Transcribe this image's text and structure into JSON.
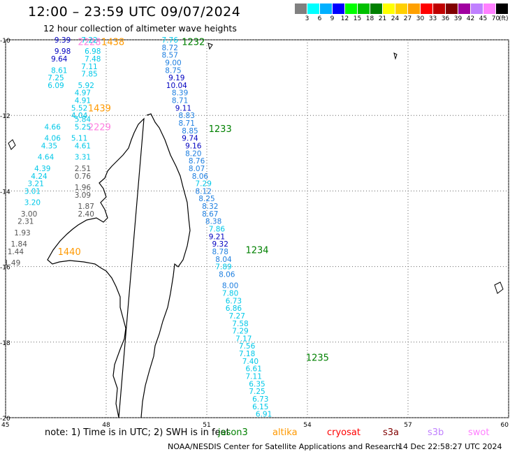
{
  "header": {
    "title": "12:00 – 23:59 UTC 09/07/2024",
    "subtitle": "12 hour collection of altimeter wave heights"
  },
  "colorbar": {
    "colors": [
      "#808080",
      "#00ffff",
      "#00b0ff",
      "#0000ff",
      "#00ff00",
      "#00c000",
      "#008000",
      "#ffff00",
      "#ffd000",
      "#ffa000",
      "#ff0000",
      "#c00000",
      "#800000",
      "#a000a0",
      "#c080ff",
      "#ff80ff",
      "#000000"
    ],
    "labels": [
      "3",
      "6",
      "9",
      "12",
      "15",
      "18",
      "21",
      "24",
      "27",
      "30",
      "33",
      "36",
      "39",
      "42",
      "45",
      "70"
    ],
    "unit": "(ft)"
  },
  "axes": {
    "lat_labels": [
      "-10",
      "-12",
      "-14",
      "-16",
      "-18",
      "-20"
    ],
    "lon_labels": [
      "45",
      "48",
      "51",
      "54",
      "57",
      "60"
    ]
  },
  "colors": {
    "gray": "#555555",
    "cyan": "#00c8e8",
    "blue": "#1e7fe0",
    "navy": "#0000c0",
    "green": "#008000",
    "orange": "#ff9900",
    "pink": "#ff7fe0"
  },
  "chart_data": {
    "type": "scatter",
    "xlabel": "",
    "ylabel": "",
    "xlim": [
      45,
      60
    ],
    "ylim": [
      -20,
      -10
    ],
    "track_times": [
      {
        "text": "1438",
        "lon": 48.2,
        "lat": -10.05,
        "color": "orange"
      },
      {
        "text": "2228",
        "lon": 47.5,
        "lat": -10.05,
        "color": "pink"
      },
      {
        "text": "1439",
        "lon": 47.8,
        "lat": -11.8,
        "color": "orange"
      },
      {
        "text": "2229",
        "lon": 47.8,
        "lat": -12.3,
        "color": "pink"
      },
      {
        "text": "1440",
        "lon": 46.9,
        "lat": -15.6,
        "color": "orange"
      },
      {
        "text": "1232",
        "lon": 50.6,
        "lat": -10.05,
        "color": "green"
      },
      {
        "text": "1233",
        "lon": 51.4,
        "lat": -12.35,
        "color": "green"
      },
      {
        "text": "1234",
        "lon": 52.5,
        "lat": -15.55,
        "color": "green"
      },
      {
        "text": "1235",
        "lon": 54.3,
        "lat": -18.4,
        "color": "green"
      }
    ],
    "series": [
      {
        "points": [
          {
            "lon": 46.7,
            "lat": -10.0,
            "v": "9.39",
            "c": "navy"
          },
          {
            "lon": 46.7,
            "lat": -10.3,
            "v": "9.98",
            "c": "navy"
          },
          {
            "lon": 46.6,
            "lat": -10.5,
            "v": "9.64",
            "c": "navy"
          },
          {
            "lon": 46.6,
            "lat": -10.8,
            "v": "8.61",
            "c": "cyan"
          },
          {
            "lon": 46.5,
            "lat": -11.0,
            "v": "7.25",
            "c": "cyan"
          },
          {
            "lon": 46.5,
            "lat": -11.2,
            "v": "6.09",
            "c": "cyan"
          },
          {
            "lon": 46.4,
            "lat": -12.3,
            "v": "4.66",
            "c": "cyan"
          },
          {
            "lon": 46.4,
            "lat": -12.6,
            "v": "4.06",
            "c": "cyan"
          },
          {
            "lon": 46.3,
            "lat": -12.8,
            "v": "4.35",
            "c": "cyan"
          },
          {
            "lon": 46.2,
            "lat": -13.1,
            "v": "4.64",
            "c": "cyan"
          },
          {
            "lon": 46.1,
            "lat": -13.4,
            "v": "4.39",
            "c": "cyan"
          },
          {
            "lon": 46.0,
            "lat": -13.6,
            "v": "4.24",
            "c": "cyan"
          },
          {
            "lon": 45.9,
            "lat": -13.8,
            "v": "3.21",
            "c": "cyan"
          },
          {
            "lon": 45.8,
            "lat": -14.0,
            "v": "3.01",
            "c": "cyan"
          },
          {
            "lon": 45.8,
            "lat": -14.3,
            "v": "3.20",
            "c": "cyan"
          },
          {
            "lon": 45.7,
            "lat": -14.6,
            "v": "3.00",
            "c": "gray"
          },
          {
            "lon": 45.6,
            "lat": -14.8,
            "v": "2.31",
            "c": "gray"
          },
          {
            "lon": 45.5,
            "lat": -15.1,
            "v": "1.93",
            "c": "gray"
          },
          {
            "lon": 45.4,
            "lat": -15.4,
            "v": "1.84",
            "c": "gray"
          },
          {
            "lon": 45.3,
            "lat": -15.6,
            "v": "1.44",
            "c": "gray"
          },
          {
            "lon": 45.2,
            "lat": -15.9,
            "v": "1.49",
            "c": "gray"
          }
        ]
      },
      {
        "points": [
          {
            "lon": 47.5,
            "lat": -10.0,
            "v": "7.22",
            "c": "cyan"
          },
          {
            "lon": 47.6,
            "lat": -10.3,
            "v": "6.98",
            "c": "cyan"
          },
          {
            "lon": 47.6,
            "lat": -10.5,
            "v": "7.48",
            "c": "cyan"
          },
          {
            "lon": 47.5,
            "lat": -10.7,
            "v": "7.11",
            "c": "cyan"
          },
          {
            "lon": 47.5,
            "lat": -10.9,
            "v": "7.85",
            "c": "cyan"
          },
          {
            "lon": 47.4,
            "lat": -11.2,
            "v": "5.92",
            "c": "cyan"
          },
          {
            "lon": 47.3,
            "lat": -11.4,
            "v": "4.97",
            "c": "cyan"
          },
          {
            "lon": 47.3,
            "lat": -11.6,
            "v": "4.91",
            "c": "cyan"
          },
          {
            "lon": 47.2,
            "lat": -11.8,
            "v": "5.52",
            "c": "cyan"
          },
          {
            "lon": 47.2,
            "lat": -12.0,
            "v": "4.04",
            "c": "cyan"
          },
          {
            "lon": 47.3,
            "lat": -12.1,
            "v": "5.84",
            "c": "cyan"
          },
          {
            "lon": 47.3,
            "lat": -12.3,
            "v": "5.25",
            "c": "cyan"
          },
          {
            "lon": 47.2,
            "lat": -12.6,
            "v": "5.11",
            "c": "cyan"
          },
          {
            "lon": 47.3,
            "lat": -12.8,
            "v": "4.61",
            "c": "cyan"
          },
          {
            "lon": 47.3,
            "lat": -13.1,
            "v": "3.31",
            "c": "cyan"
          },
          {
            "lon": 47.3,
            "lat": -13.4,
            "v": "2.51",
            "c": "gray"
          },
          {
            "lon": 47.3,
            "lat": -13.6,
            "v": "0.76",
            "c": "gray"
          },
          {
            "lon": 47.3,
            "lat": -13.9,
            "v": "1.96",
            "c": "gray"
          },
          {
            "lon": 47.3,
            "lat": -14.1,
            "v": "3.09",
            "c": "gray"
          },
          {
            "lon": 47.4,
            "lat": -14.4,
            "v": "1.87",
            "c": "gray"
          },
          {
            "lon": 47.4,
            "lat": -14.6,
            "v": "2.40",
            "c": "gray"
          }
        ]
      },
      {
        "points": [
          {
            "lon": 49.9,
            "lat": -10.0,
            "v": "7.76",
            "c": "cyan"
          },
          {
            "lon": 49.9,
            "lat": -10.2,
            "v": "8.72",
            "c": "blue"
          },
          {
            "lon": 49.9,
            "lat": -10.4,
            "v": "8.57",
            "c": "blue"
          },
          {
            "lon": 50.0,
            "lat": -10.6,
            "v": "9.00",
            "c": "blue"
          },
          {
            "lon": 50.0,
            "lat": -10.8,
            "v": "8.75",
            "c": "blue"
          },
          {
            "lon": 50.1,
            "lat": -11.0,
            "v": "9.19",
            "c": "navy"
          },
          {
            "lon": 50.1,
            "lat": -11.2,
            "v": "10.04",
            "c": "navy"
          },
          {
            "lon": 50.2,
            "lat": -11.4,
            "v": "8.39",
            "c": "blue"
          },
          {
            "lon": 50.2,
            "lat": -11.6,
            "v": "8.71",
            "c": "blue"
          },
          {
            "lon": 50.3,
            "lat": -11.8,
            "v": "9.11",
            "c": "navy"
          },
          {
            "lon": 50.4,
            "lat": -12.0,
            "v": "8.83",
            "c": "blue"
          },
          {
            "lon": 50.4,
            "lat": -12.2,
            "v": "8.71",
            "c": "blue"
          },
          {
            "lon": 50.5,
            "lat": -12.4,
            "v": "8.85",
            "c": "blue"
          },
          {
            "lon": 50.5,
            "lat": -12.6,
            "v": "9.74",
            "c": "navy"
          },
          {
            "lon": 50.6,
            "lat": -12.8,
            "v": "9.16",
            "c": "navy"
          },
          {
            "lon": 50.6,
            "lat": -13.0,
            "v": "8.20",
            "c": "blue"
          },
          {
            "lon": 50.7,
            "lat": -13.2,
            "v": "8.76",
            "c": "blue"
          },
          {
            "lon": 50.7,
            "lat": -13.4,
            "v": "8.07",
            "c": "blue"
          },
          {
            "lon": 50.8,
            "lat": -13.6,
            "v": "8.06",
            "c": "blue"
          },
          {
            "lon": 50.9,
            "lat": -13.8,
            "v": "7.29",
            "c": "cyan"
          },
          {
            "lon": 50.9,
            "lat": -14.0,
            "v": "8.12",
            "c": "blue"
          },
          {
            "lon": 51.0,
            "lat": -14.2,
            "v": "8.25",
            "c": "blue"
          },
          {
            "lon": 51.1,
            "lat": -14.4,
            "v": "8.32",
            "c": "blue"
          },
          {
            "lon": 51.1,
            "lat": -14.6,
            "v": "8.67",
            "c": "blue"
          },
          {
            "lon": 51.2,
            "lat": -14.8,
            "v": "8.38",
            "c": "blue"
          },
          {
            "lon": 51.3,
            "lat": -15.0,
            "v": "7.86",
            "c": "cyan"
          },
          {
            "lon": 51.3,
            "lat": -15.2,
            "v": "9.21",
            "c": "navy"
          },
          {
            "lon": 51.4,
            "lat": -15.4,
            "v": "9.32",
            "c": "navy"
          },
          {
            "lon": 51.4,
            "lat": -15.6,
            "v": "8.78",
            "c": "blue"
          },
          {
            "lon": 51.5,
            "lat": -15.8,
            "v": "8.04",
            "c": "blue"
          },
          {
            "lon": 51.5,
            "lat": -16.0,
            "v": "7.89",
            "c": "cyan"
          },
          {
            "lon": 51.6,
            "lat": -16.2,
            "v": "8.06",
            "c": "blue"
          },
          {
            "lon": 51.7,
            "lat": -16.5,
            "v": "8.00",
            "c": "blue"
          },
          {
            "lon": 51.7,
            "lat": -16.7,
            "v": "7.80",
            "c": "cyan"
          },
          {
            "lon": 51.8,
            "lat": -16.9,
            "v": "6.73",
            "c": "cyan"
          },
          {
            "lon": 51.8,
            "lat": -17.1,
            "v": "6.86",
            "c": "cyan"
          },
          {
            "lon": 51.9,
            "lat": -17.3,
            "v": "7.27",
            "c": "cyan"
          },
          {
            "lon": 52.0,
            "lat": -17.5,
            "v": "7.58",
            "c": "cyan"
          },
          {
            "lon": 52.0,
            "lat": -17.7,
            "v": "7.29",
            "c": "cyan"
          },
          {
            "lon": 52.1,
            "lat": -17.9,
            "v": "7.17",
            "c": "cyan"
          },
          {
            "lon": 52.2,
            "lat": -18.1,
            "v": "7.56",
            "c": "cyan"
          },
          {
            "lon": 52.2,
            "lat": -18.3,
            "v": "7.18",
            "c": "cyan"
          },
          {
            "lon": 52.3,
            "lat": -18.5,
            "v": "7.40",
            "c": "cyan"
          },
          {
            "lon": 52.4,
            "lat": -18.7,
            "v": "6.61",
            "c": "cyan"
          },
          {
            "lon": 52.4,
            "lat": -18.9,
            "v": "7.11",
            "c": "cyan"
          },
          {
            "lon": 52.5,
            "lat": -19.1,
            "v": "6.35",
            "c": "cyan"
          },
          {
            "lon": 52.5,
            "lat": -19.3,
            "v": "7.25",
            "c": "cyan"
          },
          {
            "lon": 52.6,
            "lat": -19.5,
            "v": "6.73",
            "c": "cyan"
          },
          {
            "lon": 52.6,
            "lat": -19.7,
            "v": "6.15",
            "c": "cyan"
          },
          {
            "lon": 52.7,
            "lat": -19.9,
            "v": "6.91",
            "c": "cyan"
          }
        ]
      }
    ]
  },
  "footer": {
    "note": "note: 1) Time is in UTC; 2) SWH is in feet",
    "legend": [
      {
        "name": "jason3",
        "color": "#008000"
      },
      {
        "name": "altika",
        "color": "#ff9900"
      },
      {
        "name": "cryosat",
        "color": "#ff0000"
      },
      {
        "name": "s3a",
        "color": "#800000"
      },
      {
        "name": "s3b",
        "color": "#c080ff"
      },
      {
        "name": "swot",
        "color": "#ff80ff"
      }
    ],
    "credit": "NOAA/NESDIS Center for Satellite Applications and Research",
    "timestamp": "14 Dec 22:58:27 UTC 2024"
  }
}
